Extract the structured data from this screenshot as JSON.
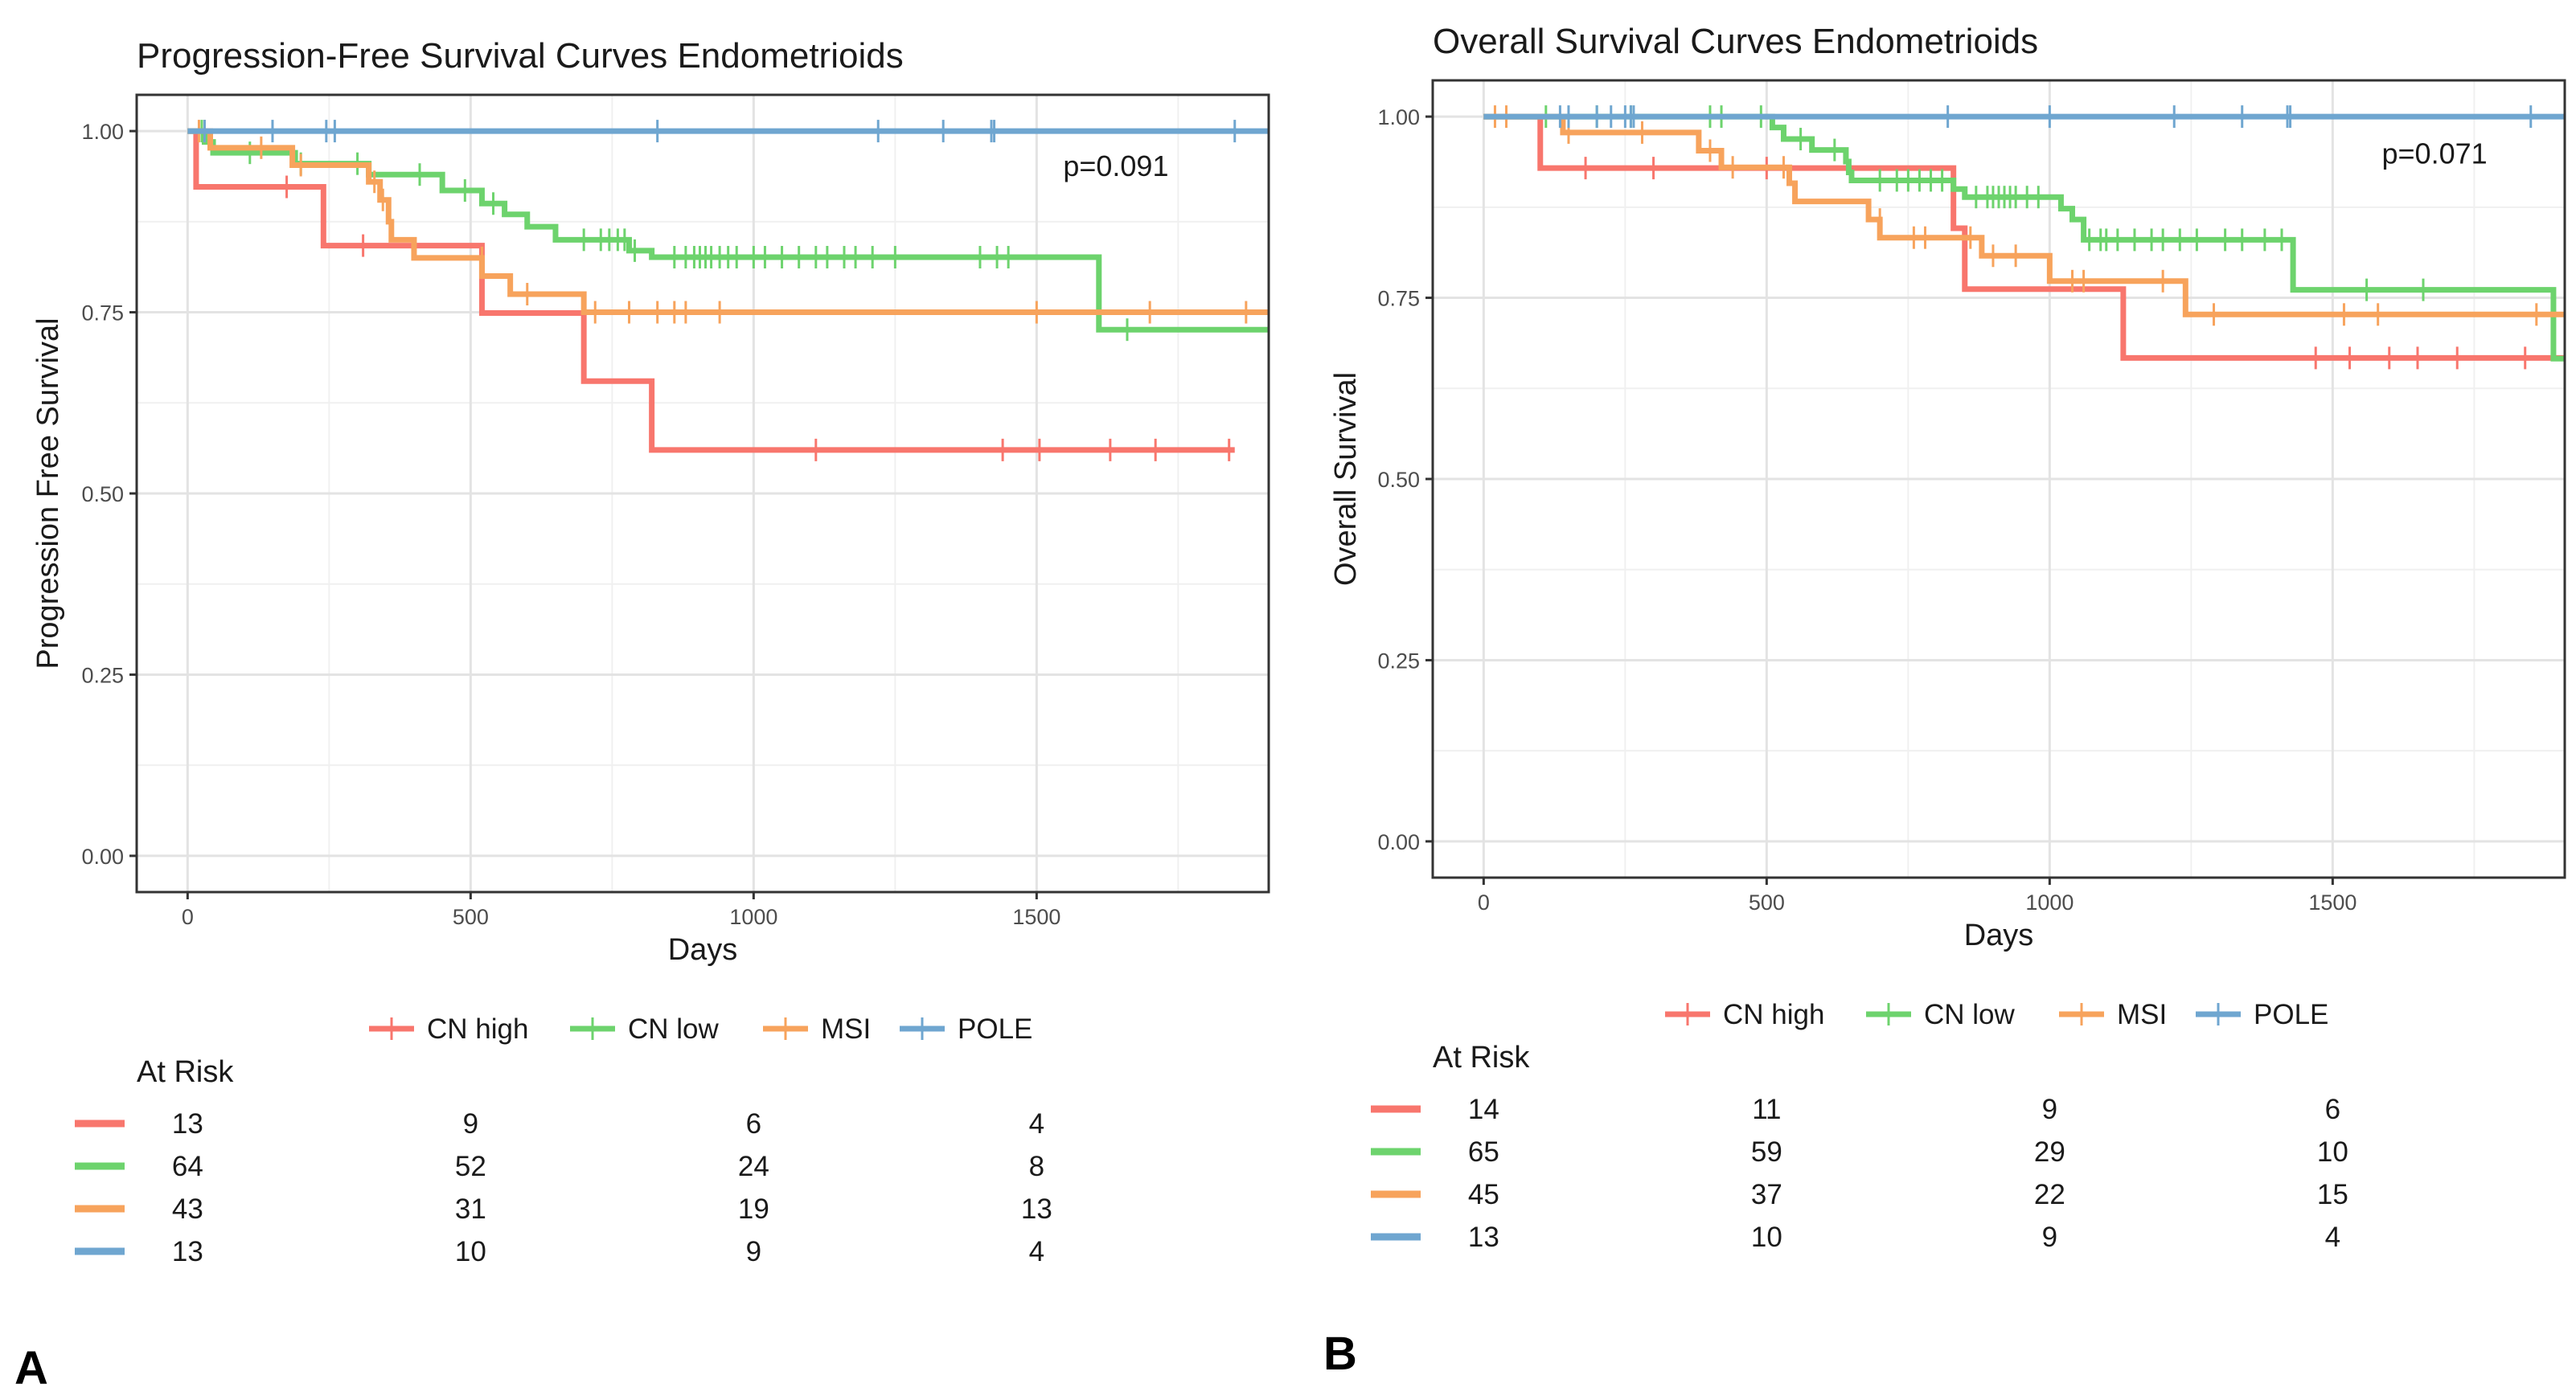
{
  "chart_data": [
    {
      "panel_label": "A",
      "type": "line",
      "subtype": "kaplan-meier",
      "title": "Progression-Free Survival Curves Endometrioids",
      "xlabel": "Days",
      "ylabel": "Progression Free Survival",
      "xlim": [
        -90,
        1910
      ],
      "ylim": [
        -0.05,
        1.05
      ],
      "xticks": [
        0,
        500,
        1000,
        1500
      ],
      "yticks": [
        0.0,
        0.25,
        0.5,
        0.75,
        1.0
      ],
      "ytick_labels": [
        "0.00",
        "0.25",
        "0.50",
        "0.75",
        "1.00"
      ],
      "grid": true,
      "pvalue_text": "p=0.091",
      "pvalue_pos": [
        1640,
        0.938
      ],
      "legend_position": "bottom",
      "legend": [
        "CN high",
        "CN low",
        "MSI",
        "POLE"
      ],
      "at_risk_title": "At Risk",
      "at_risk": {
        "times": [
          0,
          500,
          1000,
          1500
        ],
        "rows": [
          {
            "series": "CN high",
            "values": [
              13,
              9,
              6,
              4
            ]
          },
          {
            "series": "CN low",
            "values": [
              64,
              52,
              24,
              8
            ]
          },
          {
            "series": "MSI",
            "values": [
              43,
              31,
              19,
              13
            ]
          },
          {
            "series": "POLE",
            "values": [
              13,
              10,
              9,
              4
            ]
          }
        ]
      },
      "series": [
        {
          "name": "CN high",
          "color": "#f8766d",
          "steps": [
            [
              0,
              1
            ],
            [
              15,
              0.923
            ],
            [
              240,
              0.842
            ],
            [
              520,
              0.749
            ],
            [
              700,
              0.655
            ],
            [
              820,
              0.56
            ],
            [
              1850,
              0.56
            ]
          ],
          "censors": [
            [
              175,
              0.923
            ],
            [
              310,
              0.842
            ],
            [
              1110,
              0.56
            ],
            [
              1440,
              0.56
            ],
            [
              1505,
              0.56
            ],
            [
              1630,
              0.56
            ],
            [
              1710,
              0.56
            ],
            [
              1840,
              0.56
            ]
          ]
        },
        {
          "name": "CN low",
          "color": "#6dd36d",
          "steps": [
            [
              0,
              1
            ],
            [
              30,
              0.985
            ],
            [
              45,
              0.97
            ],
            [
              190,
              0.955
            ],
            [
              320,
              0.94
            ],
            [
              450,
              0.918
            ],
            [
              520,
              0.9
            ],
            [
              560,
              0.885
            ],
            [
              600,
              0.868
            ],
            [
              650,
              0.85
            ],
            [
              780,
              0.835
            ],
            [
              820,
              0.826
            ],
            [
              1610,
              0.726
            ],
            [
              1910,
              0.726
            ]
          ],
          "censors": [
            [
              25,
              1
            ],
            [
              110,
              0.97
            ],
            [
              200,
              0.955
            ],
            [
              300,
              0.955
            ],
            [
              410,
              0.94
            ],
            [
              490,
              0.918
            ],
            [
              540,
              0.9
            ],
            [
              700,
              0.85
            ],
            [
              730,
              0.85
            ],
            [
              745,
              0.85
            ],
            [
              760,
              0.85
            ],
            [
              772,
              0.85
            ],
            [
              790,
              0.835
            ],
            [
              860,
              0.826
            ],
            [
              880,
              0.826
            ],
            [
              895,
              0.826
            ],
            [
              905,
              0.826
            ],
            [
              915,
              0.826
            ],
            [
              925,
              0.826
            ],
            [
              940,
              0.826
            ],
            [
              955,
              0.826
            ],
            [
              970,
              0.826
            ],
            [
              1000,
              0.826
            ],
            [
              1020,
              0.826
            ],
            [
              1050,
              0.826
            ],
            [
              1080,
              0.826
            ],
            [
              1110,
              0.826
            ],
            [
              1130,
              0.826
            ],
            [
              1160,
              0.826
            ],
            [
              1180,
              0.826
            ],
            [
              1210,
              0.826
            ],
            [
              1250,
              0.826
            ],
            [
              1400,
              0.826
            ],
            [
              1430,
              0.826
            ],
            [
              1450,
              0.826
            ],
            [
              1660,
              0.726
            ]
          ]
        },
        {
          "name": "MSI",
          "color": "#f7a35c",
          "steps": [
            [
              0,
              1
            ],
            [
              40,
              0.977
            ],
            [
              185,
              0.953
            ],
            [
              320,
              0.93
            ],
            [
              340,
              0.905
            ],
            [
              355,
              0.875
            ],
            [
              360,
              0.85
            ],
            [
              400,
              0.825
            ],
            [
              520,
              0.8
            ],
            [
              570,
              0.775
            ],
            [
              700,
              0.75
            ],
            [
              1910,
              0.75
            ]
          ],
          "censors": [
            [
              20,
              1
            ],
            [
              30,
              1
            ],
            [
              130,
              0.977
            ],
            [
              200,
              0.953
            ],
            [
              330,
              0.93
            ],
            [
              345,
              0.905
            ],
            [
              520,
              0.825
            ],
            [
              600,
              0.775
            ],
            [
              720,
              0.75
            ],
            [
              780,
              0.75
            ],
            [
              830,
              0.75
            ],
            [
              860,
              0.75
            ],
            [
              880,
              0.75
            ],
            [
              940,
              0.75
            ],
            [
              1500,
              0.75
            ],
            [
              1700,
              0.75
            ],
            [
              1870,
              0.75
            ]
          ]
        },
        {
          "name": "POLE",
          "color": "#6fa6d0",
          "steps": [
            [
              0,
              1
            ],
            [
              1910,
              1
            ]
          ],
          "censors": [
            [
              30,
              1
            ],
            [
              150,
              1
            ],
            [
              245,
              1
            ],
            [
              260,
              1
            ],
            [
              830,
              1
            ],
            [
              1220,
              1
            ],
            [
              1335,
              1
            ],
            [
              1420,
              1
            ],
            [
              1425,
              1
            ],
            [
              1850,
              1
            ]
          ]
        }
      ]
    },
    {
      "panel_label": "B",
      "type": "line",
      "subtype": "kaplan-meier",
      "title": "Overall Survival Curves Endometrioids",
      "xlabel": "Days",
      "ylabel": "Overall Survival",
      "xlim": [
        -90,
        1910
      ],
      "ylim": [
        -0.05,
        1.05
      ],
      "xticks": [
        0,
        500,
        1000,
        1500
      ],
      "yticks": [
        0.0,
        0.25,
        0.5,
        0.75,
        1.0
      ],
      "ytick_labels": [
        "0.00",
        "0.25",
        "0.50",
        "0.75",
        "1.00"
      ],
      "grid": true,
      "pvalue_text": "p=0.071",
      "pvalue_pos": [
        1680,
        0.935
      ],
      "legend_position": "bottom",
      "legend": [
        "CN high",
        "CN low",
        "MSI",
        "POLE"
      ],
      "at_risk_title": "At Risk",
      "at_risk": {
        "times": [
          0,
          500,
          1000,
          1500
        ],
        "rows": [
          {
            "series": "CN high",
            "values": [
              14,
              11,
              9,
              6
            ]
          },
          {
            "series": "CN low",
            "values": [
              65,
              59,
              29,
              10
            ]
          },
          {
            "series": "MSI",
            "values": [
              45,
              37,
              22,
              15
            ]
          },
          {
            "series": "POLE",
            "values": [
              13,
              10,
              9,
              4
            ]
          }
        ]
      },
      "series": [
        {
          "name": "CN high",
          "color": "#f8766d",
          "steps": [
            [
              0,
              1
            ],
            [
              100,
              0.929
            ],
            [
              830,
              0.846
            ],
            [
              850,
              0.762
            ],
            [
              1130,
              0.667
            ],
            [
              1910,
              0.667
            ]
          ],
          "censors": [
            [
              180,
              0.929
            ],
            [
              300,
              0.929
            ],
            [
              500,
              0.929
            ],
            [
              1470,
              0.667
            ],
            [
              1530,
              0.667
            ],
            [
              1600,
              0.667
            ],
            [
              1650,
              0.667
            ],
            [
              1720,
              0.667
            ],
            [
              1840,
              0.667
            ]
          ]
        },
        {
          "name": "CN low",
          "color": "#6dd36d",
          "steps": [
            [
              0,
              1
            ],
            [
              510,
              0.985
            ],
            [
              530,
              0.969
            ],
            [
              580,
              0.954
            ],
            [
              640,
              0.938
            ],
            [
              645,
              0.923
            ],
            [
              650,
              0.912
            ],
            [
              830,
              0.9
            ],
            [
              850,
              0.889
            ],
            [
              1020,
              0.873
            ],
            [
              1040,
              0.858
            ],
            [
              1060,
              0.83
            ],
            [
              1430,
              0.761
            ],
            [
              1890,
              0.761
            ],
            [
              1890,
              0.666
            ],
            [
              1910,
              0.666
            ]
          ],
          "censors": [
            [
              110,
              1
            ],
            [
              200,
              1
            ],
            [
              260,
              1
            ],
            [
              400,
              1
            ],
            [
              420,
              1
            ],
            [
              490,
              1
            ],
            [
              560,
              0.969
            ],
            [
              620,
              0.954
            ],
            [
              700,
              0.912
            ],
            [
              730,
              0.912
            ],
            [
              750,
              0.912
            ],
            [
              770,
              0.912
            ],
            [
              790,
              0.912
            ],
            [
              810,
              0.912
            ],
            [
              870,
              0.889
            ],
            [
              890,
              0.889
            ],
            [
              900,
              0.889
            ],
            [
              910,
              0.889
            ],
            [
              920,
              0.889
            ],
            [
              930,
              0.889
            ],
            [
              940,
              0.889
            ],
            [
              960,
              0.889
            ],
            [
              980,
              0.889
            ],
            [
              1070,
              0.83
            ],
            [
              1090,
              0.83
            ],
            [
              1100,
              0.83
            ],
            [
              1120,
              0.83
            ],
            [
              1150,
              0.83
            ],
            [
              1180,
              0.83
            ],
            [
              1200,
              0.83
            ],
            [
              1230,
              0.83
            ],
            [
              1260,
              0.83
            ],
            [
              1310,
              0.83
            ],
            [
              1340,
              0.83
            ],
            [
              1380,
              0.83
            ],
            [
              1410,
              0.83
            ],
            [
              1560,
              0.761
            ],
            [
              1660,
              0.761
            ]
          ]
        },
        {
          "name": "MSI",
          "color": "#f7a35c",
          "steps": [
            [
              0,
              1
            ],
            [
              140,
              0.978
            ],
            [
              380,
              0.953
            ],
            [
              420,
              0.93
            ],
            [
              540,
              0.908
            ],
            [
              550,
              0.883
            ],
            [
              620,
              0.883
            ],
            [
              680,
              0.858
            ],
            [
              700,
              0.833
            ],
            [
              840,
              0.833
            ],
            [
              880,
              0.808
            ],
            [
              1000,
              0.773
            ],
            [
              1240,
              0.727
            ],
            [
              1910,
              0.727
            ]
          ],
          "censors": [
            [
              20,
              1
            ],
            [
              40,
              1
            ],
            [
              150,
              0.978
            ],
            [
              280,
              0.978
            ],
            [
              400,
              0.953
            ],
            [
              440,
              0.93
            ],
            [
              530,
              0.93
            ],
            [
              700,
              0.858
            ],
            [
              760,
              0.833
            ],
            [
              780,
              0.833
            ],
            [
              860,
              0.833
            ],
            [
              900,
              0.808
            ],
            [
              940,
              0.808
            ],
            [
              1040,
              0.773
            ],
            [
              1060,
              0.773
            ],
            [
              1200,
              0.773
            ],
            [
              1290,
              0.727
            ],
            [
              1520,
              0.727
            ],
            [
              1580,
              0.727
            ],
            [
              1860,
              0.727
            ]
          ]
        },
        {
          "name": "POLE",
          "color": "#6fa6d0",
          "steps": [
            [
              0,
              1
            ],
            [
              1910,
              1
            ]
          ],
          "censors": [
            [
              135,
              1
            ],
            [
              150,
              1
            ],
            [
              200,
              1
            ],
            [
              225,
              1
            ],
            [
              250,
              1
            ],
            [
              260,
              1
            ],
            [
              265,
              1
            ],
            [
              820,
              1
            ],
            [
              1000,
              1
            ],
            [
              1220,
              1
            ],
            [
              1340,
              1
            ],
            [
              1420,
              1
            ],
            [
              1425,
              1
            ],
            [
              1850,
              1
            ]
          ]
        }
      ]
    }
  ]
}
